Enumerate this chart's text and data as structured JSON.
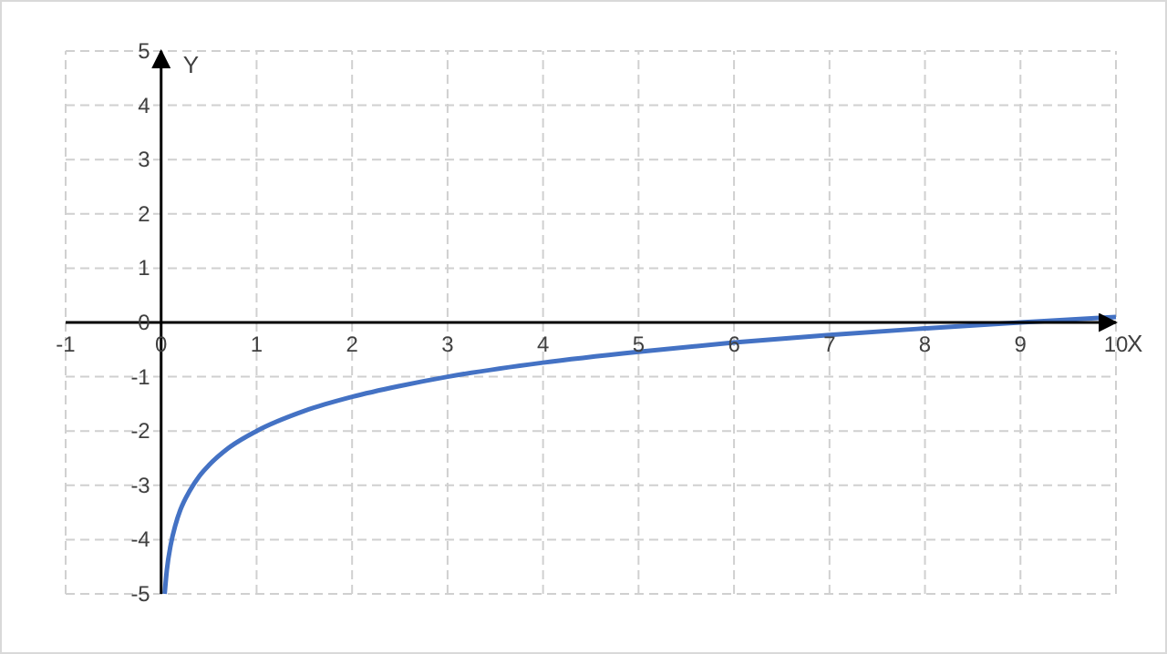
{
  "chart_data": {
    "type": "line",
    "xlabel": "X",
    "ylabel": "Y",
    "xlim": [
      -1,
      10
    ],
    "ylim": [
      -5,
      5
    ],
    "xticks": [
      -1,
      0,
      1,
      2,
      3,
      4,
      5,
      6,
      7,
      8,
      9,
      10
    ],
    "yticks": [
      -5,
      -4,
      -3,
      -2,
      -1,
      0,
      1,
      2,
      3,
      4,
      5
    ],
    "grid": true,
    "marker": "none",
    "line_style": "solid",
    "series": [
      {
        "color": "#4472c4",
        "x": [
          0.037,
          0.06,
          0.1,
          0.15,
          0.2,
          0.3,
          0.4,
          0.5,
          0.7,
          1,
          1.5,
          2,
          2.5,
          3,
          4,
          5,
          6,
          7,
          8,
          9,
          10
        ],
        "values": [
          -5,
          -4.56,
          -4.1,
          -3.73,
          -3.46,
          -3.1,
          -2.83,
          -2.63,
          -2.32,
          -2,
          -1.63,
          -1.37,
          -1.17,
          -1,
          -0.74,
          -0.54,
          -0.37,
          -0.23,
          -0.11,
          0,
          0.1
        ]
      }
    ]
  }
}
